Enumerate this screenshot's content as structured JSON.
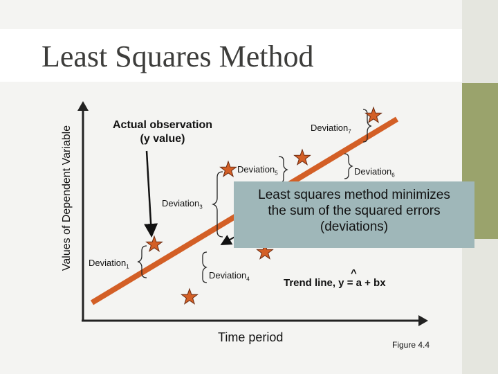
{
  "slide": {
    "title": "Least Squares Method",
    "y_axis_label": "Values of Dependent Variable",
    "x_axis_label": "Time period",
    "observation_label_line1": "Actual observation",
    "observation_label_line2": "(y value)",
    "callout_line1": "Least squares method minimizes",
    "callout_line2": "the sum of the squared errors",
    "callout_line3": "(deviations)",
    "trend_line_label": "Trend line, y = a + bx",
    "trend_line_hat": "^",
    "figure_label": "Figure 4.4",
    "deviation_word": "Deviation",
    "deviations": [
      {
        "sub": "1"
      },
      {
        "sub": "3"
      },
      {
        "sub": "5"
      },
      {
        "sub": "6"
      },
      {
        "sub": "7"
      },
      {
        "sub": "4"
      }
    ]
  },
  "colors": {
    "trend_line": "#d35f26",
    "star_fill": "#d35f26",
    "star_stroke": "#6b2a10",
    "callout_bg": "#9fb7b9",
    "accent": "#9aa36c"
  },
  "icons": {
    "observation": "star-icon",
    "deviation": "brace-icon",
    "pointer": "arrow-icon"
  }
}
